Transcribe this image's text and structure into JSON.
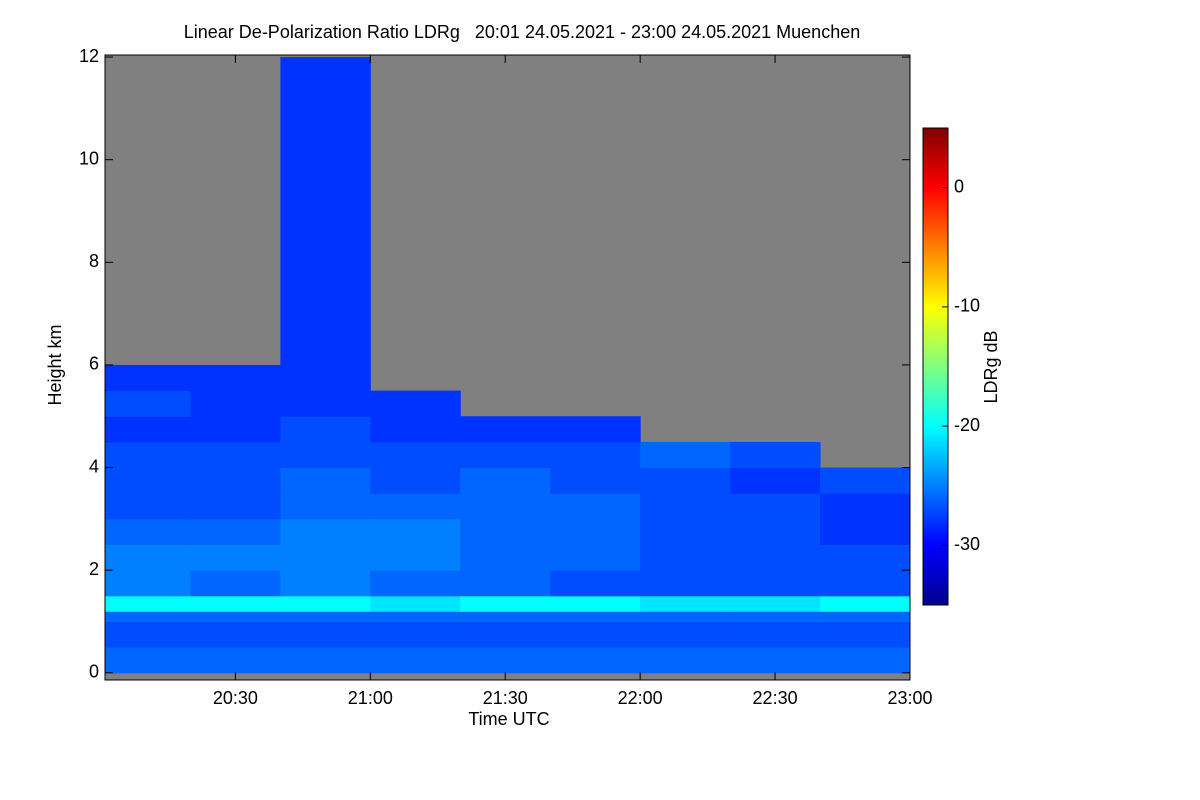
{
  "chart_data": {
    "type": "heatmap",
    "title": "Linear De-Polarization Ratio LDRg   20:01 24.05.2021 - 23:00 24.05.2021 Muenchen",
    "x_label": "Time UTC",
    "y_label": "Height km",
    "colorbar_label": "LDRg dB",
    "xbins": [
      20.0167,
      20.3333,
      20.6667,
      21.0,
      21.3333,
      21.6667,
      22.0,
      22.3333,
      22.6667,
      23.0
    ],
    "ybins": [
      0,
      0.5,
      1,
      1.2,
      1.5,
      2,
      2.5,
      3,
      3.5,
      4,
      4.5,
      5,
      5.5,
      6,
      12
    ],
    "values": [
      [
        -26,
        -26,
        -26,
        -26,
        -26,
        -26,
        -26,
        -26,
        -26
      ],
      [
        -27,
        -27,
        -27,
        -27,
        -27,
        -27,
        -27,
        -27,
        -27
      ],
      [
        -26,
        -26,
        -26,
        -26,
        -26,
        -26,
        -26,
        -26,
        -26
      ],
      [
        -20,
        -20,
        -20,
        -21,
        -20,
        -20,
        -21,
        -21,
        -20
      ],
      [
        -25,
        -26,
        -25,
        -26,
        -26,
        -27,
        -27,
        -27,
        -27
      ],
      [
        -25,
        -25,
        -25,
        -25,
        -26,
        -26,
        -27,
        -27,
        -27
      ],
      [
        -26,
        -26,
        -25,
        -25,
        -26,
        -26,
        -27,
        -27,
        -28
      ],
      [
        -27,
        -27,
        -26,
        -26,
        -26,
        -26,
        -27,
        -27,
        -28
      ],
      [
        -27,
        -27,
        -26,
        -27,
        -26,
        -27,
        -27,
        -28,
        -27
      ],
      [
        -27,
        -27,
        -27,
        -27,
        -27,
        -27,
        -26,
        -27,
        null
      ],
      [
        -28,
        -28,
        -27,
        -28,
        -28,
        -28,
        null,
        null,
        null
      ],
      [
        -27,
        -28,
        -28,
        -28,
        null,
        null,
        null,
        null,
        null
      ],
      [
        -28,
        -28,
        -28,
        null,
        null,
        null,
        null,
        null,
        null
      ],
      [
        null,
        null,
        -28,
        null,
        null,
        null,
        null,
        null,
        null
      ],
      [
        null,
        null,
        null,
        null,
        null,
        null,
        null,
        null,
        null
      ]
    ],
    "xlim": [
      20.0167,
      23.0
    ],
    "xticks": [
      {
        "value": 20.5,
        "label": "20:30"
      },
      {
        "value": 21.0,
        "label": "21:00"
      },
      {
        "value": 21.5,
        "label": "21:30"
      },
      {
        "value": 22.0,
        "label": "22:00"
      },
      {
        "value": 22.5,
        "label": "22:30"
      },
      {
        "value": 23.0,
        "label": "23:00"
      }
    ],
    "ylim": [
      -0.14,
      12.04
    ],
    "yticks": [
      0,
      2,
      4,
      6,
      8,
      10,
      12
    ],
    "clim": [
      -35,
      5
    ],
    "cticks": [
      -30,
      -20,
      -10,
      0
    ],
    "colormap": "jet",
    "no_data_color": "#808080"
  }
}
